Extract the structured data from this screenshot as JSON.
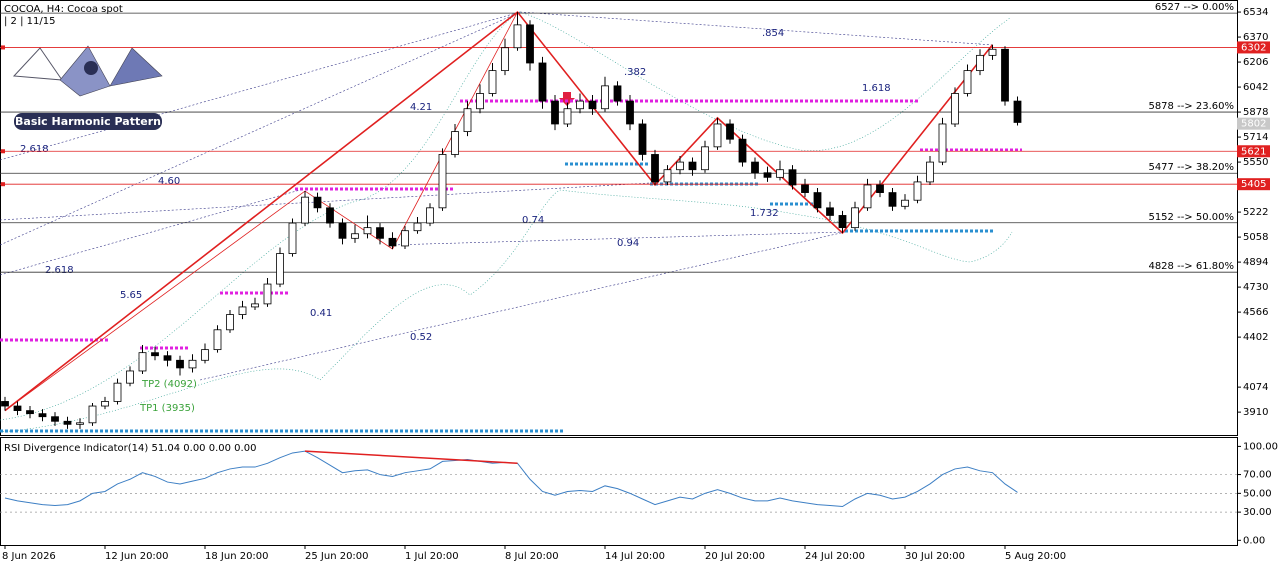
{
  "header": {
    "title": "COCOA, H4:  Cocoa spot",
    "subtitle": "| 2 | 11/15",
    "logo": "Basic Harmonic Pattern"
  },
  "chart_data": [
    {
      "type": "candlestick",
      "categories": [
        "8 Jun 2026",
        null,
        null,
        null,
        null,
        null,
        null,
        null,
        "12 Jun 20:00",
        null,
        null,
        null,
        null,
        null,
        null,
        null,
        "18 Jun 20:00",
        null,
        null,
        null,
        null,
        null,
        null,
        null,
        "25 Jun 20:00",
        null,
        null,
        null,
        null,
        null,
        null,
        null,
        "1 Jul 20:00",
        null,
        null,
        null,
        null,
        null,
        null,
        null,
        "8 Jul 20:00",
        null,
        null,
        null,
        null,
        null,
        null,
        null,
        "14 Jul 20:00",
        null,
        null,
        null,
        null,
        null,
        null,
        null,
        "20 Jul 20:00",
        null,
        null,
        null,
        null,
        null,
        null,
        null,
        "24 Jul 20:00",
        null,
        null,
        null,
        null,
        null,
        null,
        null,
        "30 Jul 20:00",
        null,
        null,
        null,
        null,
        null,
        null,
        null,
        "5 Aug 20:00",
        null
      ],
      "ohlc": [
        [
          3980,
          4010,
          3920,
          3950
        ],
        [
          3950,
          3980,
          3890,
          3920
        ],
        [
          3920,
          3950,
          3870,
          3900
        ],
        [
          3900,
          3930,
          3850,
          3880
        ],
        [
          3880,
          3910,
          3820,
          3850
        ],
        [
          3850,
          3880,
          3800,
          3830
        ],
        [
          3830,
          3870,
          3800,
          3840
        ],
        [
          3840,
          3970,
          3820,
          3950
        ],
        [
          3950,
          4010,
          3930,
          3980
        ],
        [
          3980,
          4130,
          3960,
          4100
        ],
        [
          4100,
          4210,
          4080,
          4180
        ],
        [
          4180,
          4350,
          4160,
          4300
        ],
        [
          4300,
          4340,
          4250,
          4280
        ],
        [
          4280,
          4310,
          4210,
          4250
        ],
        [
          4250,
          4280,
          4150,
          4200
        ],
        [
          4200,
          4290,
          4170,
          4250
        ],
        [
          4250,
          4360,
          4230,
          4320
        ],
        [
          4320,
          4480,
          4300,
          4450
        ],
        [
          4450,
          4580,
          4430,
          4550
        ],
        [
          4550,
          4640,
          4520,
          4600
        ],
        [
          4600,
          4660,
          4580,
          4620
        ],
        [
          4620,
          4790,
          4600,
          4750
        ],
        [
          4750,
          4990,
          4730,
          4950
        ],
        [
          4950,
          5180,
          4930,
          5150
        ],
        [
          5150,
          5360,
          5130,
          5320
        ],
        [
          5320,
          5350,
          5220,
          5250
        ],
        [
          5250,
          5280,
          5120,
          5150
        ],
        [
          5150,
          5180,
          5010,
          5050
        ],
        [
          5050,
          5140,
          5020,
          5080
        ],
        [
          5080,
          5200,
          5050,
          5120
        ],
        [
          5120,
          5150,
          5010,
          5050
        ],
        [
          5050,
          5090,
          4980,
          5000
        ],
        [
          5000,
          5130,
          4980,
          5100
        ],
        [
          5100,
          5190,
          5080,
          5150
        ],
        [
          5150,
          5280,
          5130,
          5250
        ],
        [
          5250,
          5640,
          5230,
          5600
        ],
        [
          5600,
          5800,
          5580,
          5750
        ],
        [
          5750,
          5950,
          5720,
          5900
        ],
        [
          5900,
          6060,
          5870,
          6000
        ],
        [
          6000,
          6200,
          5980,
          6150
        ],
        [
          6150,
          6360,
          6120,
          6300
        ],
        [
          6300,
          6534,
          6280,
          6450
        ],
        [
          6450,
          6480,
          6150,
          6200
        ],
        [
          6200,
          6240,
          5900,
          5950
        ],
        [
          5950,
          5990,
          5760,
          5800
        ],
        [
          5800,
          5940,
          5780,
          5900
        ],
        [
          5900,
          6000,
          5870,
          5950
        ],
        [
          5950,
          5990,
          5860,
          5900
        ],
        [
          5900,
          6110,
          5880,
          6050
        ],
        [
          6050,
          6080,
          5920,
          5950
        ],
        [
          5950,
          5990,
          5760,
          5800
        ],
        [
          5800,
          5830,
          5560,
          5600
        ],
        [
          5600,
          5630,
          5400,
          5420
        ],
        [
          5420,
          5530,
          5400,
          5500
        ],
        [
          5500,
          5590,
          5470,
          5550
        ],
        [
          5550,
          5580,
          5460,
          5500
        ],
        [
          5500,
          5690,
          5480,
          5650
        ],
        [
          5650,
          5840,
          5630,
          5800
        ],
        [
          5800,
          5830,
          5670,
          5700
        ],
        [
          5700,
          5730,
          5520,
          5550
        ],
        [
          5550,
          5580,
          5440,
          5480
        ],
        [
          5480,
          5520,
          5420,
          5450
        ],
        [
          5450,
          5560,
          5430,
          5500
        ],
        [
          5500,
          5530,
          5370,
          5400
        ],
        [
          5400,
          5440,
          5320,
          5350
        ],
        [
          5350,
          5380,
          5220,
          5250
        ],
        [
          5250,
          5290,
          5170,
          5200
        ],
        [
          5200,
          5230,
          5085,
          5120
        ],
        [
          5120,
          5290,
          5100,
          5250
        ],
        [
          5250,
          5440,
          5230,
          5400
        ],
        [
          5400,
          5430,
          5320,
          5350
        ],
        [
          5350,
          5380,
          5230,
          5260
        ],
        [
          5260,
          5340,
          5240,
          5300
        ],
        [
          5300,
          5460,
          5280,
          5420
        ],
        [
          5420,
          5590,
          5400,
          5550
        ],
        [
          5550,
          5840,
          5530,
          5800
        ],
        [
          5800,
          6040,
          5780,
          6000
        ],
        [
          6000,
          6190,
          5980,
          6150
        ],
        [
          6150,
          6290,
          6120,
          6250
        ],
        [
          6250,
          6320,
          6220,
          6290
        ],
        [
          6290,
          6310,
          5920,
          5950
        ],
        [
          5950,
          5980,
          5790,
          5810
        ]
      ],
      "colors": {
        "up": "#ffffff",
        "down": "#000000",
        "pattern": "#e02020"
      },
      "ylim": [
        3760,
        6600
      ],
      "yticks": [
        6534,
        6370,
        6206,
        6042,
        5878,
        5714,
        5550,
        5222,
        5058,
        4894,
        4730,
        4566,
        4402,
        4074,
        3910
      ],
      "levels": [
        {
          "value": 6527,
          "label": "6527 --> 0.00%"
        },
        {
          "value": 5878,
          "label": "5878 --> 23.60%"
        },
        {
          "value": 5477,
          "label": "5477 --> 38.20%"
        },
        {
          "value": 5152,
          "label": "5152 --> 50.00%"
        },
        {
          "value": 4828,
          "label": "4828 --> 61.80%"
        }
      ],
      "price_labels": [
        {
          "value": 6302,
          "color": "#e02020"
        },
        {
          "value": 5802,
          "color": "#c8c8c8"
        },
        {
          "value": 5621,
          "color": "#e02020"
        },
        {
          "value": 5405,
          "color": "#e02020"
        }
      ],
      "annotations": [
        ".854",
        "1.618",
        "4.21",
        "2.618",
        "4.60",
        ".382",
        "0.74",
        "1.732",
        "0.94",
        "2.618",
        "5.65",
        "0.41",
        "0.52",
        "TP2 (4092)",
        "TP1 (3935)"
      ]
    },
    {
      "type": "line",
      "title": "RSI Divergence Indicator(14) 51.04 0.00 0.00 0.00",
      "color": "#3d7fc4",
      "values": [
        45,
        42,
        40,
        38,
        37,
        38,
        42,
        50,
        52,
        60,
        65,
        72,
        68,
        62,
        60,
        63,
        66,
        72,
        76,
        78,
        78,
        82,
        88,
        93,
        95,
        88,
        80,
        72,
        74,
        75,
        70,
        68,
        72,
        74,
        76,
        84,
        85,
        86,
        84,
        82,
        83,
        82,
        65,
        52,
        48,
        52,
        53,
        52,
        58,
        55,
        50,
        44,
        38,
        42,
        46,
        44,
        50,
        54,
        50,
        45,
        42,
        42,
        45,
        42,
        40,
        38,
        37,
        36,
        44,
        50,
        48,
        44,
        46,
        52,
        60,
        70,
        76,
        78,
        74,
        72,
        60,
        51.04
      ],
      "ylim": [
        -5,
        110
      ],
      "yticks": [
        {
          "value": 100,
          "label": "100.00"
        },
        {
          "value": 70,
          "label": "70.00"
        },
        {
          "value": 50,
          "label": "50.00"
        },
        {
          "value": 30,
          "label": "30.00"
        },
        {
          "value": 0,
          "label": "0.00"
        }
      ],
      "grid": true
    }
  ]
}
